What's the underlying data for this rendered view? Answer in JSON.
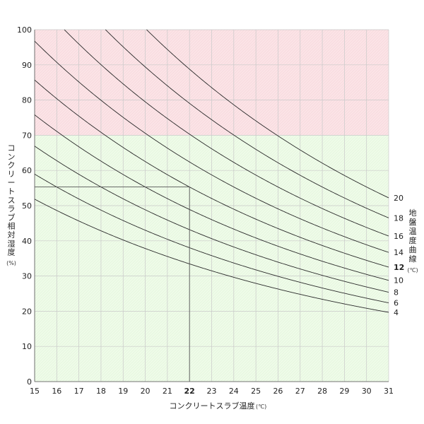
{
  "chart_data": {
    "type": "line",
    "xlabel": "コンクリートスラブ温度",
    "xunit": "(℃)",
    "ylabel": "コンクリートスラブ相対湿度",
    "yunit": "(%)",
    "legend_title": "地盤温度曲線",
    "legend_unit": "(℃)",
    "xlim": [
      15,
      31
    ],
    "ylim": [
      0,
      100
    ],
    "x_ticks": [
      15,
      16,
      17,
      18,
      19,
      20,
      21,
      22,
      23,
      24,
      25,
      26,
      27,
      28,
      29,
      30,
      31
    ],
    "y_ticks": [
      0,
      10,
      20,
      30,
      40,
      50,
      60,
      70,
      80,
      90,
      100
    ],
    "highlight_x_tick": 22,
    "highlight_series": "12",
    "grid": true,
    "zones": [
      {
        "name": "danger",
        "from": 70,
        "to": 100,
        "color": "#fbe3e6"
      },
      {
        "name": "safe",
        "from": 0,
        "to": 70,
        "color": "#eefbe8"
      }
    ],
    "series": [
      {
        "name": "4",
        "T": 4
      },
      {
        "name": "6",
        "T": 6
      },
      {
        "name": "8",
        "T": 8
      },
      {
        "name": "10",
        "T": 10
      },
      {
        "name": "12",
        "T": 12
      },
      {
        "name": "14",
        "T": 14
      },
      {
        "name": "16",
        "T": 16
      },
      {
        "name": "18",
        "T": 18
      },
      {
        "name": "20",
        "T": 20
      }
    ],
    "reference": {
      "x": 22,
      "y": 55.3,
      "series": "12"
    }
  }
}
